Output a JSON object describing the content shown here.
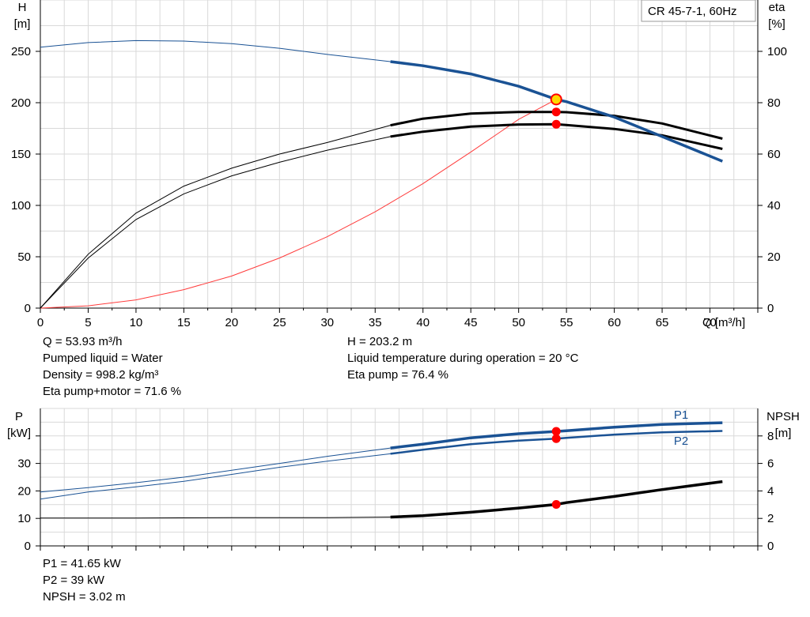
{
  "chart_data": [
    {
      "type": "line",
      "title": "CR 45-7-1, 60Hz",
      "xlabel": "Q [m³/h]",
      "ylabel_left": [
        "H",
        "[m]"
      ],
      "ylabel_right": [
        "eta",
        "[%]"
      ],
      "xlim": [
        0,
        75
      ],
      "ylim_left": [
        0,
        300
      ],
      "ylim_right": [
        0,
        120
      ],
      "x_ticks": [
        0,
        5,
        10,
        15,
        20,
        25,
        30,
        35,
        40,
        45,
        50,
        55,
        60,
        65,
        70
      ],
      "y_ticks_left": [
        0,
        50,
        100,
        150,
        200,
        250
      ],
      "y_ticks_right": [
        0,
        20,
        40,
        60,
        80,
        100
      ],
      "grid": true,
      "series": [
        {
          "axis": "left",
          "color": "#1a5294",
          "x": [
            0,
            5,
            10,
            15,
            20,
            25,
            30,
            36.6,
            40,
            45,
            50,
            53.93,
            55,
            60,
            65,
            71.3
          ],
          "y": [
            254,
            258.5,
            260.5,
            260,
            257.5,
            253,
            247,
            240,
            236,
            228,
            216,
            203.2,
            201,
            186,
            167,
            143
          ]
        },
        {
          "axis": "right",
          "x": [
            0,
            5,
            10,
            15,
            20,
            25,
            30,
            36.6,
            40,
            45,
            50,
            53.93,
            55,
            60,
            65,
            71.3
          ],
          "y": [
            0,
            21,
            37,
            47.5,
            54.5,
            60,
            64.5,
            71.2,
            73.8,
            75.8,
            76.4,
            76.4,
            76.3,
            74.9,
            71.9,
            66
          ]
        },
        {
          "axis": "right",
          "x": [
            0,
            5,
            10,
            15,
            20,
            25,
            30,
            36.6,
            40,
            45,
            50,
            53.93,
            55,
            60,
            65,
            71.3
          ],
          "y": [
            0,
            19.5,
            34.5,
            44.5,
            51.5,
            56.8,
            61.5,
            66.8,
            68.7,
            70.7,
            71.5,
            71.6,
            71.3,
            69.8,
            67.3,
            62
          ]
        },
        {
          "axis": "right",
          "color": "#ff3b3b",
          "x": [
            0,
            5,
            10,
            15,
            20,
            25,
            30,
            35,
            40,
            45,
            50,
            53.93
          ],
          "y": [
            0,
            0.9,
            3.2,
            7.2,
            12.5,
            19.5,
            27.8,
            37.5,
            48.5,
            60.8,
            73.5,
            81.3
          ]
        }
      ],
      "duty_point": {
        "x": 53.93,
        "y": 203.2
      }
    },
    {
      "type": "line",
      "xlabel": "",
      "ylabel_left": [
        "P",
        "[kW]"
      ],
      "ylabel_right": [
        "NPSH",
        "[m]"
      ],
      "xlim": [
        0,
        75
      ],
      "ylim_left": [
        0,
        50
      ],
      "ylim_right": [
        0,
        10
      ],
      "y_ticks_left": [
        0,
        10,
        20,
        30
      ],
      "y_ticks_right": [
        0,
        2,
        4,
        6,
        8
      ],
      "grid": true,
      "series": [
        {
          "name": "P1",
          "axis": "left",
          "color": "#1a5294",
          "x": [
            0,
            5,
            10,
            15,
            20,
            25,
            30,
            36.6,
            40,
            45,
            50,
            53.93,
            55,
            60,
            65,
            71.3
          ],
          "y": [
            19.6,
            21.2,
            23,
            25,
            27.5,
            30,
            32.6,
            35.6,
            37,
            39.3,
            40.8,
            41.65,
            41.9,
            43.2,
            44.2,
            44.8
          ]
        },
        {
          "name": "P2",
          "axis": "left",
          "color": "#1a5294",
          "x": [
            0,
            5,
            10,
            15,
            20,
            25,
            30,
            36.6,
            40,
            45,
            50,
            53.93,
            55,
            60,
            65,
            71.3
          ],
          "y": [
            17,
            19.6,
            21.5,
            23.5,
            26,
            28.6,
            30.8,
            33.5,
            35,
            37,
            38.3,
            39,
            39.3,
            40.5,
            41.3,
            41.8
          ]
        },
        {
          "axis": "right",
          "color": "#000000",
          "x": [
            0,
            10,
            20,
            30,
            36.6,
            40,
            45,
            50,
            53.93,
            55,
            60,
            65,
            71.3
          ],
          "y": [
            2.03,
            2.03,
            2.05,
            2.06,
            2.1,
            2.2,
            2.45,
            2.75,
            3.02,
            3.15,
            3.6,
            4.1,
            4.68
          ]
        }
      ],
      "duty_point": {
        "x": 53.93,
        "p1": 41.65,
        "p2": 39,
        "npsh": 3.02
      }
    }
  ],
  "info_top_left": [
    "Q = 53.93 m³/h",
    "Pumped liquid = Water",
    "Density = 998.2 kg/m³",
    "Eta pump+motor = 71.6 %"
  ],
  "info_top_right": [
    "H = 203.2 m",
    "Liquid temperature during operation = 20 °C",
    "Eta pump = 76.4 %"
  ],
  "info_bottom": [
    "P1 = 41.65 kW",
    "P2 = 39 kW",
    "NPSH = 3.02 m"
  ]
}
